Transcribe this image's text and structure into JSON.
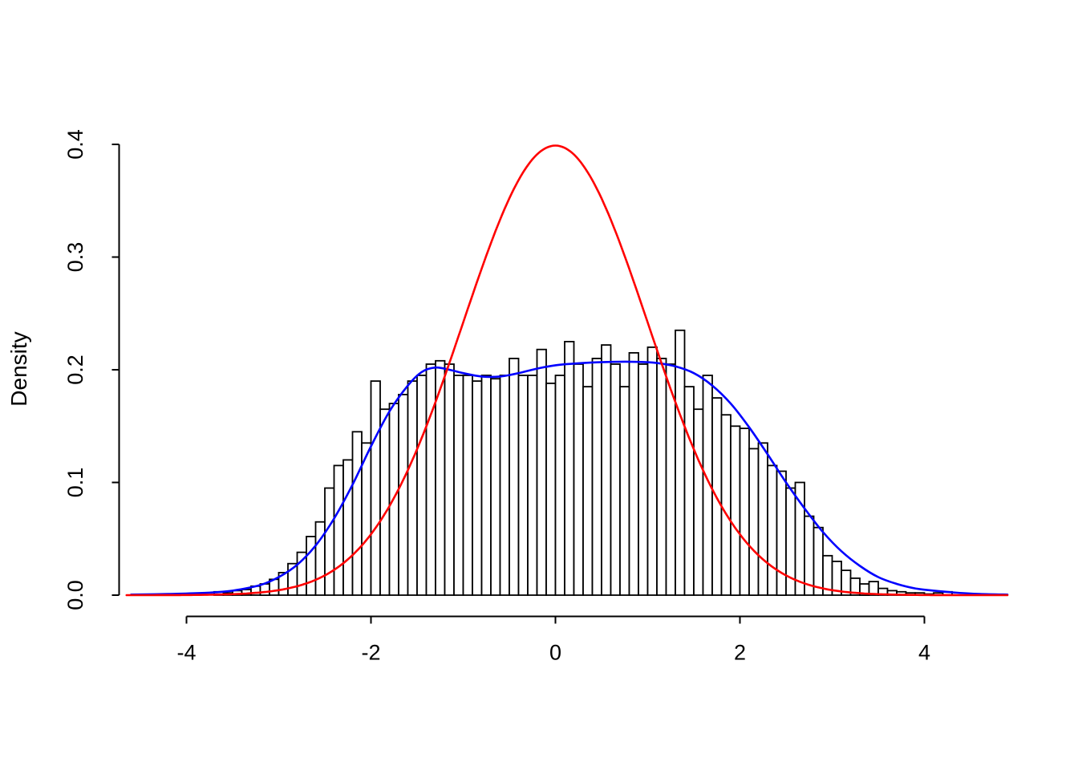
{
  "chart_data": {
    "type": "histogram",
    "title": "",
    "xlabel": "",
    "ylabel": "Density",
    "xlim": [
      -4.7,
      4.9
    ],
    "ylim": [
      0,
      0.4
    ],
    "grid": false,
    "legend": "none",
    "x_ticks": {
      "values": [
        -4,
        -2,
        0,
        2,
        4
      ],
      "labels": [
        "-4",
        "-2",
        "0",
        "2",
        "4"
      ]
    },
    "y_ticks": {
      "values": [
        0,
        0.1,
        0.2,
        0.3,
        0.4
      ],
      "labels": [
        "0.0",
        "0.1",
        "0.2",
        "0.3",
        "0.4"
      ]
    },
    "histogram": {
      "name": "sample-histogram",
      "bin_start": -3.7,
      "bin_width": 0.1,
      "fill": "#ffffff",
      "stroke": "#000000",
      "heights": [
        0.003,
        0.002,
        0.004,
        0.005,
        0.008,
        0.01,
        0.014,
        0.02,
        0.028,
        0.038,
        0.052,
        0.065,
        0.095,
        0.115,
        0.12,
        0.145,
        0.135,
        0.19,
        0.165,
        0.17,
        0.178,
        0.19,
        0.195,
        0.205,
        0.208,
        0.205,
        0.195,
        0.195,
        0.19,
        0.195,
        0.192,
        0.195,
        0.21,
        0.195,
        0.195,
        0.218,
        0.188,
        0.195,
        0.225,
        0.205,
        0.185,
        0.21,
        0.222,
        0.205,
        0.185,
        0.215,
        0.205,
        0.22,
        0.21,
        0.205,
        0.235,
        0.185,
        0.165,
        0.195,
        0.175,
        0.16,
        0.15,
        0.148,
        0.13,
        0.135,
        0.115,
        0.11,
        0.095,
        0.1,
        0.07,
        0.06,
        0.035,
        0.03,
        0.022,
        0.015,
        0.01,
        0.012,
        0.006,
        0.004,
        0.003,
        0.002,
        0.002,
        0.001,
        0.002,
        0.003
      ]
    },
    "series": [
      {
        "name": "kernel-density-estimate",
        "type": "line",
        "color": "#0000ff",
        "points": [
          [
            -4.6,
            0.0005
          ],
          [
            -4.2,
            0.001
          ],
          [
            -3.8,
            0.002
          ],
          [
            -3.5,
            0.004
          ],
          [
            -3.2,
            0.009
          ],
          [
            -3.0,
            0.016
          ],
          [
            -2.8,
            0.027
          ],
          [
            -2.6,
            0.044
          ],
          [
            -2.4,
            0.068
          ],
          [
            -2.2,
            0.098
          ],
          [
            -2.0,
            0.132
          ],
          [
            -1.8,
            0.163
          ],
          [
            -1.6,
            0.186
          ],
          [
            -1.45,
            0.198
          ],
          [
            -1.3,
            0.202
          ],
          [
            -1.15,
            0.2
          ],
          [
            -1.0,
            0.197
          ],
          [
            -0.8,
            0.194
          ],
          [
            -0.6,
            0.194
          ],
          [
            -0.4,
            0.197
          ],
          [
            -0.2,
            0.201
          ],
          [
            0.0,
            0.204
          ],
          [
            0.3,
            0.206
          ],
          [
            0.6,
            0.207
          ],
          [
            0.9,
            0.207
          ],
          [
            1.1,
            0.206
          ],
          [
            1.3,
            0.203
          ],
          [
            1.5,
            0.197
          ],
          [
            1.7,
            0.186
          ],
          [
            1.9,
            0.17
          ],
          [
            2.1,
            0.149
          ],
          [
            2.3,
            0.125
          ],
          [
            2.5,
            0.1
          ],
          [
            2.7,
            0.077
          ],
          [
            2.9,
            0.056
          ],
          [
            3.1,
            0.039
          ],
          [
            3.3,
            0.026
          ],
          [
            3.5,
            0.016
          ],
          [
            3.7,
            0.01
          ],
          [
            3.9,
            0.006
          ],
          [
            4.1,
            0.004
          ],
          [
            4.3,
            0.0025
          ],
          [
            4.6,
            0.001
          ],
          [
            4.9,
            0.0005
          ]
        ]
      },
      {
        "name": "normal-density-reference",
        "type": "normal-curve",
        "color": "#ff0000",
        "mean": 0,
        "sd": 1,
        "peak": 0.3989,
        "x_range": [
          -4.65,
          4.9
        ]
      }
    ]
  },
  "colors": {
    "background": "#ffffff",
    "axis": "#000000",
    "histogram_fill": "#ffffff",
    "histogram_stroke": "#000000",
    "density_line": "#0000ff",
    "normal_line": "#ff0000"
  }
}
